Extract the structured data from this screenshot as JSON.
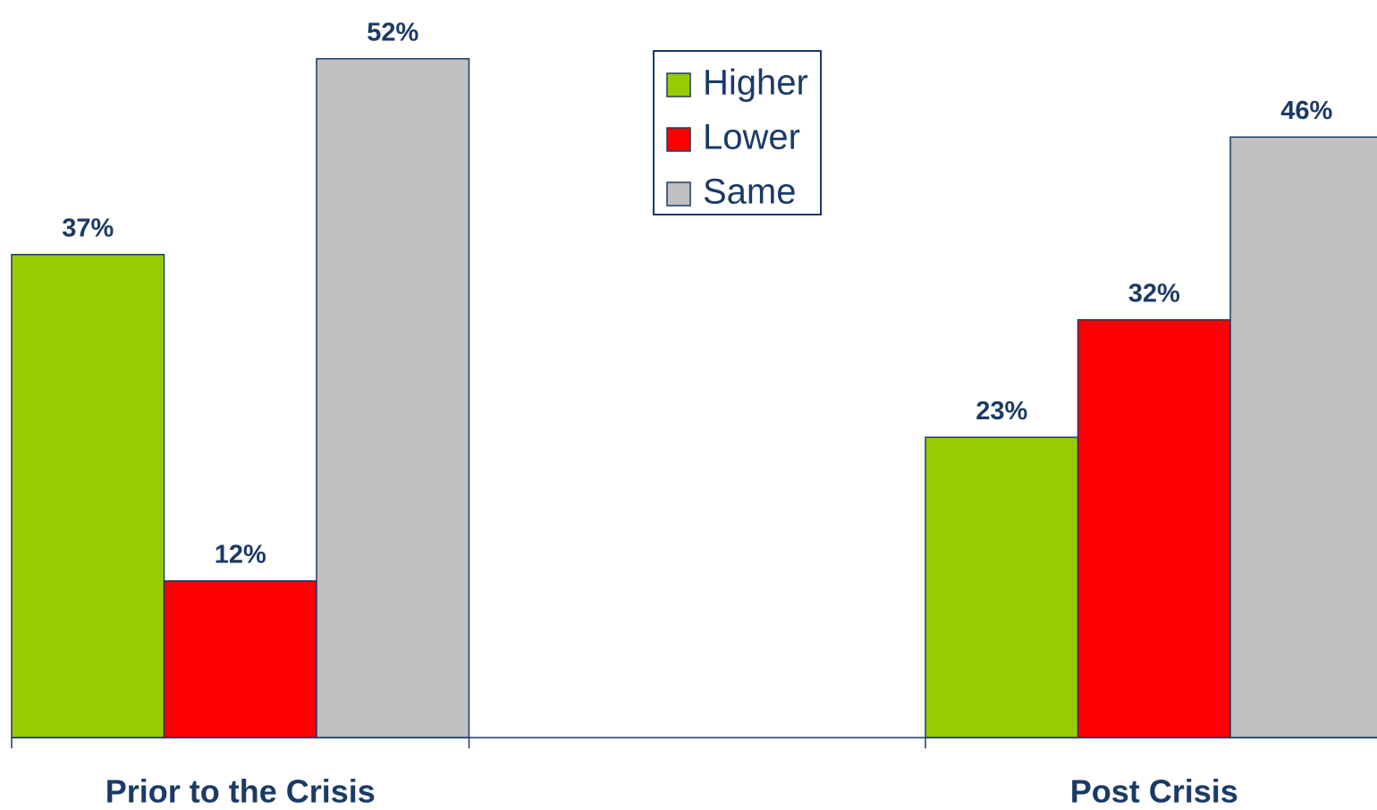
{
  "chart_data": {
    "type": "bar",
    "categories": [
      "Prior to the Crisis",
      "Post Crisis"
    ],
    "series": [
      {
        "name": "Higher",
        "color": "#99cc00",
        "values": [
          37,
          23
        ],
        "value_labels": [
          "37%",
          "23%"
        ]
      },
      {
        "name": "Lower",
        "color": "#ff0000",
        "values": [
          12,
          32
        ],
        "value_labels": [
          "12%",
          "32%"
        ]
      },
      {
        "name": "Same",
        "color": "#c0c0c0",
        "values": [
          52,
          46
        ],
        "value_labels": [
          "52%",
          "46%"
        ]
      }
    ],
    "ylim": [
      0,
      56.5
    ],
    "legend": "top-center"
  }
}
